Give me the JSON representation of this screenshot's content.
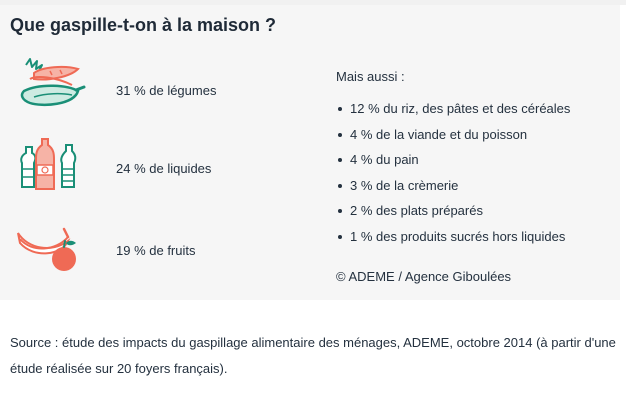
{
  "title": "Que gaspille-t-on à la maison ?",
  "categories": [
    {
      "label": "31 % de légumes",
      "icon": "vegetables-icon"
    },
    {
      "label": "24 % de liquides",
      "icon": "bottles-icon"
    },
    {
      "label": "19 % de fruits",
      "icon": "fruits-icon"
    }
  ],
  "also": {
    "heading": "Mais aussi :",
    "items": [
      "12 % du riz, des pâtes et des céréales",
      "4 % de la viande et du poisson",
      "4 % du pain",
      "3 % de la crèmerie",
      "2 % des plats préparés",
      "1 % des produits sucrés hors liquides"
    ]
  },
  "credit": "© ADEME / Agence Giboulées",
  "source": "Source : étude des impacts du gaspillage alimentaire des ménages, ADEME, octobre 2014 (à partir d'une étude réalisée sur 20 foyers français).",
  "colors": {
    "teal": "#1a8f77",
    "coral": "#ef6a55",
    "text": "#24313f"
  }
}
